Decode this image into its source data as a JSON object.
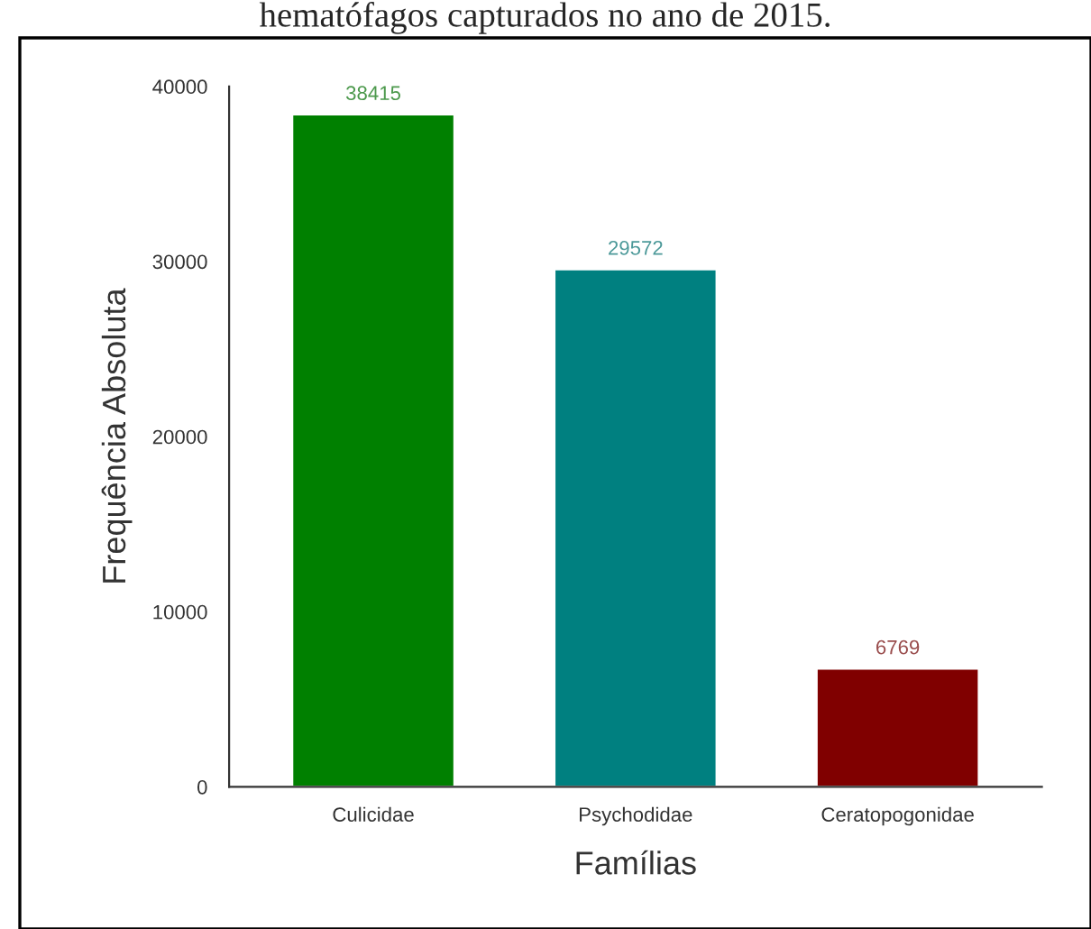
{
  "chart_data": {
    "type": "bar",
    "title": "hematófagos capturados no ano de 2015.",
    "categories": [
      "Culicidae",
      "Psychodidae",
      "Ceratopogonidae"
    ],
    "values": [
      38415,
      29572,
      6769
    ],
    "colors": [
      "#008000",
      "#008080",
      "#800000"
    ],
    "xlabel": "Famílias",
    "ylabel": "Frequência Absoluta",
    "ylim": [
      0,
      40000
    ],
    "yticks": [
      0,
      10000,
      20000,
      30000,
      40000
    ],
    "data_labels": true,
    "grid": false,
    "legend": false
  }
}
